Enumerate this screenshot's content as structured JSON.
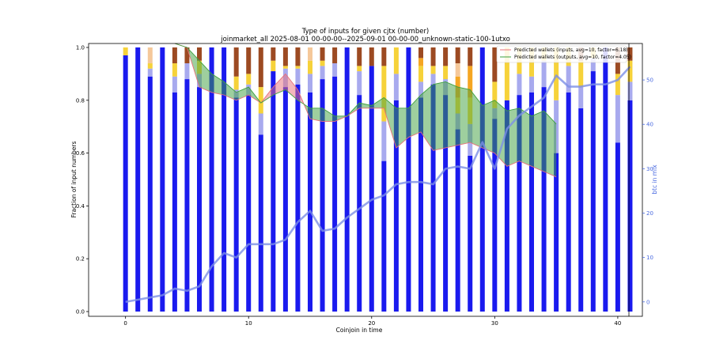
{
  "chart_data": {
    "type": "bar",
    "title_line1": "Type of inputs for given cjtx (number)",
    "title_line2": "joinmarket_all 2025-08-01 00-00-00--2025-09-01 00-00-00_unknown-static-100-1utxo",
    "xlabel": "Coinjoin in time",
    "ylabel": "Fraction of input numbers",
    "y2label": "btc in mix",
    "xlim": [
      -3,
      42
    ],
    "ylim": [
      0,
      1.0
    ],
    "y2lim": [
      -2,
      57.5
    ],
    "xticks": [
      0,
      10,
      20,
      30,
      40
    ],
    "yticks": [
      0.0,
      0.2,
      0.4,
      0.6,
      0.8,
      1.0
    ],
    "y2ticks": [
      0,
      10,
      20,
      30,
      40,
      50
    ],
    "stack_order": [
      "blue",
      "lightblue",
      "gold",
      "orange",
      "peach",
      "brown"
    ],
    "colors": {
      "blue": "#1a1aee",
      "lightblue": "#a8aaee",
      "gold": "#f6d23a",
      "orange": "#f5a623",
      "peach": "#f5c89a",
      "brown": "#9c4a22",
      "pred_inputs": "#e8707a",
      "pred_outputs": "#3ea03e",
      "btc_line": "#7c8ee6"
    },
    "bars": [
      {
        "x": 0,
        "stack": [
          0.97,
          0,
          0.03,
          0,
          0,
          0
        ]
      },
      {
        "x": 1,
        "stack": [
          1.0,
          0,
          0,
          0,
          0,
          0
        ]
      },
      {
        "x": 2,
        "stack": [
          0.89,
          0.03,
          0.02,
          0,
          0.06,
          0
        ]
      },
      {
        "x": 3,
        "stack": [
          1.0,
          0,
          0,
          0,
          0,
          0
        ]
      },
      {
        "x": 4,
        "stack": [
          0.83,
          0.06,
          0.05,
          0,
          0,
          0.06
        ]
      },
      {
        "x": 5,
        "stack": [
          0.88,
          0.06,
          0,
          0,
          0,
          0.06
        ]
      },
      {
        "x": 6,
        "stack": [
          0.85,
          0.05,
          0.05,
          0,
          0,
          0.05
        ]
      },
      {
        "x": 7,
        "stack": [
          1.0,
          0,
          0,
          0,
          0,
          0
        ]
      },
      {
        "x": 8,
        "stack": [
          1.0,
          0,
          0,
          0,
          0,
          0
        ]
      },
      {
        "x": 9,
        "stack": [
          0.81,
          0.03,
          0.05,
          0,
          0,
          0.11
        ]
      },
      {
        "x": 10,
        "stack": [
          0.82,
          0.04,
          0.04,
          0,
          0,
          0.1
        ]
      },
      {
        "x": 11,
        "stack": [
          0.67,
          0.08,
          0.1,
          0,
          0,
          0.15
        ]
      },
      {
        "x": 12,
        "stack": [
          0.91,
          0,
          0.04,
          0,
          0,
          0.05
        ]
      },
      {
        "x": 13,
        "stack": [
          0.85,
          0.07,
          0.01,
          0,
          0,
          0.07
        ]
      },
      {
        "x": 14,
        "stack": [
          0.86,
          0.06,
          0.01,
          0,
          0,
          0.07
        ]
      },
      {
        "x": 15,
        "stack": [
          0.83,
          0.07,
          0.05,
          0,
          0.05,
          0
        ]
      },
      {
        "x": 16,
        "stack": [
          0.88,
          0.05,
          0.02,
          0,
          0,
          0.05
        ]
      },
      {
        "x": 17,
        "stack": [
          0.89,
          0.05,
          0,
          0,
          0,
          0.06
        ]
      },
      {
        "x": 18,
        "stack": [
          1.0,
          0,
          0,
          0,
          0,
          0
        ]
      },
      {
        "x": 19,
        "stack": [
          0.82,
          0.09,
          0.02,
          0,
          0,
          0.07
        ]
      },
      {
        "x": 20,
        "stack": [
          0.93,
          0,
          0,
          0,
          0,
          0.07
        ]
      },
      {
        "x": 21,
        "stack": [
          0.57,
          0.15,
          0.21,
          0,
          0,
          0.07
        ]
      },
      {
        "x": 22,
        "stack": [
          0.8,
          0.1,
          0.1,
          0,
          0,
          0
        ]
      },
      {
        "x": 23,
        "stack": [
          1.0,
          0,
          0,
          0,
          0,
          0
        ]
      },
      {
        "x": 24,
        "stack": [
          0.81,
          0.06,
          0.06,
          0.03,
          0,
          0.04
        ]
      },
      {
        "x": 25,
        "stack": [
          0.86,
          0.04,
          0.03,
          0,
          0,
          0.07
        ]
      },
      {
        "x": 26,
        "stack": [
          0.82,
          0.06,
          0.05,
          0,
          0,
          0.07
        ]
      },
      {
        "x": 27,
        "stack": [
          0.69,
          0.06,
          0.06,
          0.08,
          0.05,
          0.06
        ]
      },
      {
        "x": 28,
        "stack": [
          0.59,
          0.12,
          0.1,
          0.12,
          0,
          0.07
        ]
      },
      {
        "x": 29,
        "stack": [
          1.0,
          0,
          0,
          0,
          0,
          0
        ]
      },
      {
        "x": 30,
        "stack": [
          0.73,
          0.04,
          0.1,
          0,
          0,
          0.13
        ]
      },
      {
        "x": 31,
        "stack": [
          0.8,
          0,
          0.2,
          0,
          0,
          0
        ]
      },
      {
        "x": 32,
        "stack": [
          0.82,
          0.08,
          0.1,
          0,
          0,
          0
        ]
      },
      {
        "x": 33,
        "stack": [
          0.83,
          0.06,
          0.11,
          0,
          0,
          0
        ]
      },
      {
        "x": 34,
        "stack": [
          0.85,
          0.1,
          0.05,
          0,
          0,
          0
        ]
      },
      {
        "x": 35,
        "stack": [
          0.6,
          0.2,
          0.2,
          0,
          0,
          0
        ]
      },
      {
        "x": 36,
        "stack": [
          0.83,
          0.1,
          0.07,
          0,
          0,
          0
        ]
      },
      {
        "x": 37,
        "stack": [
          0.77,
          0.08,
          0.1,
          0,
          0,
          0.05
        ]
      },
      {
        "x": 38,
        "stack": [
          0.91,
          0.05,
          0.04,
          0,
          0,
          0
        ]
      },
      {
        "x": 39,
        "stack": [
          1.0,
          0,
          0,
          0,
          0,
          0
        ]
      },
      {
        "x": 40,
        "stack": [
          0.64,
          0.18,
          0.08,
          0,
          0,
          0.1
        ]
      },
      {
        "x": 41,
        "stack": [
          0.8,
          0.07,
          0.08,
          0,
          0,
          0.05
        ]
      }
    ],
    "series": [
      {
        "name": "Predicted wallets (inputs, avg=10, factor=6.18)",
        "x": [
          4,
          5,
          6,
          7,
          8,
          9,
          10,
          11,
          12,
          13,
          14,
          15,
          16,
          17,
          18,
          19,
          20,
          21,
          22,
          23,
          24,
          25,
          26,
          27,
          28,
          29,
          30,
          31,
          32,
          33,
          34,
          35
        ],
        "y": [
          1.5,
          1.0,
          0.85,
          0.83,
          0.82,
          0.8,
          0.82,
          0.79,
          0.85,
          0.9,
          0.84,
          0.73,
          0.72,
          0.72,
          0.74,
          0.77,
          0.77,
          0.77,
          0.62,
          0.66,
          0.68,
          0.61,
          0.62,
          0.63,
          0.64,
          0.62,
          0.6,
          0.55,
          0.57,
          0.55,
          0.53,
          0.51
        ]
      },
      {
        "name": "Predicted wallets (outputs, avg=10, factor=4.05)",
        "x": [
          4,
          5,
          6,
          7,
          8,
          9,
          10,
          11,
          12,
          13,
          14,
          15,
          16,
          17,
          18,
          19,
          20,
          21,
          22,
          23,
          24,
          25,
          26,
          27,
          28,
          29,
          30,
          31,
          32,
          33,
          34,
          35
        ],
        "y": [
          1.5,
          1.0,
          0.95,
          0.9,
          0.87,
          0.83,
          0.85,
          0.79,
          0.82,
          0.84,
          0.8,
          0.77,
          0.77,
          0.74,
          0.74,
          0.79,
          0.78,
          0.81,
          0.77,
          0.77,
          0.82,
          0.86,
          0.87,
          0.85,
          0.84,
          0.78,
          0.8,
          0.76,
          0.77,
          0.74,
          0.76,
          0.71
        ]
      }
    ],
    "btc_series": {
      "name": "btc in mix",
      "x": [
        0,
        1,
        2,
        3,
        4,
        5,
        6,
        7,
        8,
        9,
        10,
        11,
        12,
        13,
        14,
        15,
        16,
        17,
        18,
        19,
        20,
        21,
        22,
        23,
        24,
        25,
        26,
        27,
        28,
        29,
        30,
        31,
        32,
        33,
        34,
        35,
        36,
        37,
        38,
        39,
        40,
        41
      ],
      "y": [
        0,
        0.5,
        1,
        1.5,
        3,
        2.5,
        3.5,
        8,
        11,
        10,
        13,
        13,
        13,
        14,
        18,
        20.5,
        16,
        16.5,
        19,
        21,
        23,
        24,
        26.5,
        27,
        27,
        26.5,
        30,
        30.5,
        30,
        36,
        30,
        39,
        42,
        44,
        46,
        51,
        48.5,
        48.5,
        49,
        49,
        50,
        53
      ]
    }
  }
}
